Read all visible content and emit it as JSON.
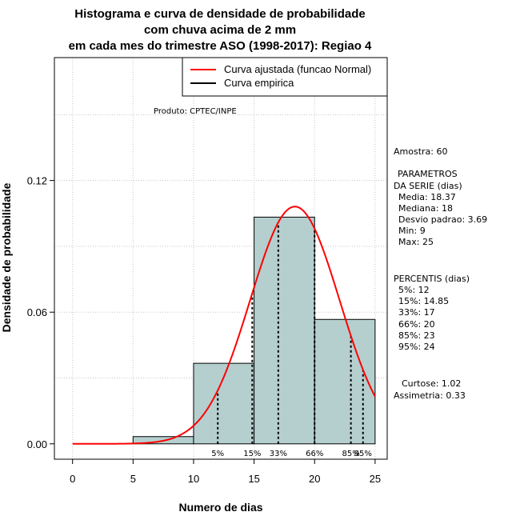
{
  "chart_data": {
    "type": "bar",
    "title_lines": [
      "Histograma e curva de densidade de probabilidade",
      "com chuva acima de 2 mm",
      "em cada mes do trimestre ASO (1998-2017): Regiao 4"
    ],
    "xlabel": "Numero de dias",
    "ylabel": "Densidade de probabilidade",
    "xlim": [
      -1.5,
      26
    ],
    "ylim": [
      -0.007,
      0.176
    ],
    "x_ticks": [
      0,
      5,
      10,
      15,
      20,
      25
    ],
    "y_ticks": [
      0.0,
      0.06,
      0.12
    ],
    "y_tick_labels": [
      "0.00",
      "0.06",
      "0.12"
    ],
    "bins": [
      {
        "x0": 5,
        "x1": 10,
        "density": 0.0033
      },
      {
        "x0": 10,
        "x1": 15,
        "density": 0.0367
      },
      {
        "x0": 15,
        "x1": 20,
        "density": 0.1033
      },
      {
        "x0": 20,
        "x1": 25,
        "density": 0.0567
      }
    ],
    "normal_fit": {
      "mean": 18.37,
      "sd": 3.69,
      "x_from": 0,
      "x_to": 25
    },
    "percentile_lines": [
      {
        "label": "5%",
        "x": 12
      },
      {
        "label": "15%",
        "x": 14.85
      },
      {
        "label": "33%",
        "x": 17
      },
      {
        "label": "66%",
        "x": 20
      },
      {
        "label": "85%",
        "x": 23
      },
      {
        "label": "95%",
        "x": 24
      }
    ],
    "legend": {
      "placement": "top-right",
      "entries": [
        {
          "label": "Curva ajustada (funcao Normal)",
          "color": "#ff0000"
        },
        {
          "label": "Curva empirica",
          "color": "#000000"
        }
      ]
    },
    "grid": true,
    "bar_color": "#b5cfcf",
    "credit": "Produto: CPTEC/INPE",
    "stats": {
      "amostra": "Amostra: 60",
      "param_title_1": "PARAMETROS",
      "param_title_2": "DA SERIE (dias)",
      "media": "Media: 18.37",
      "mediana": "Mediana: 18",
      "desvio": "Desvio padrao: 3.69",
      "min": "Min: 9",
      "max": "Max: 25",
      "perc_title": "PERCENTIS (dias)",
      "p5": "5%: 12",
      "p15": "15%: 14.85",
      "p33": "33%: 17",
      "p66": "66%: 20",
      "p85": "85%: 23",
      "p95": "95%: 24",
      "curtose": "Curtose: 1.02",
      "assimetria": "Assimetria: 0.33"
    }
  }
}
